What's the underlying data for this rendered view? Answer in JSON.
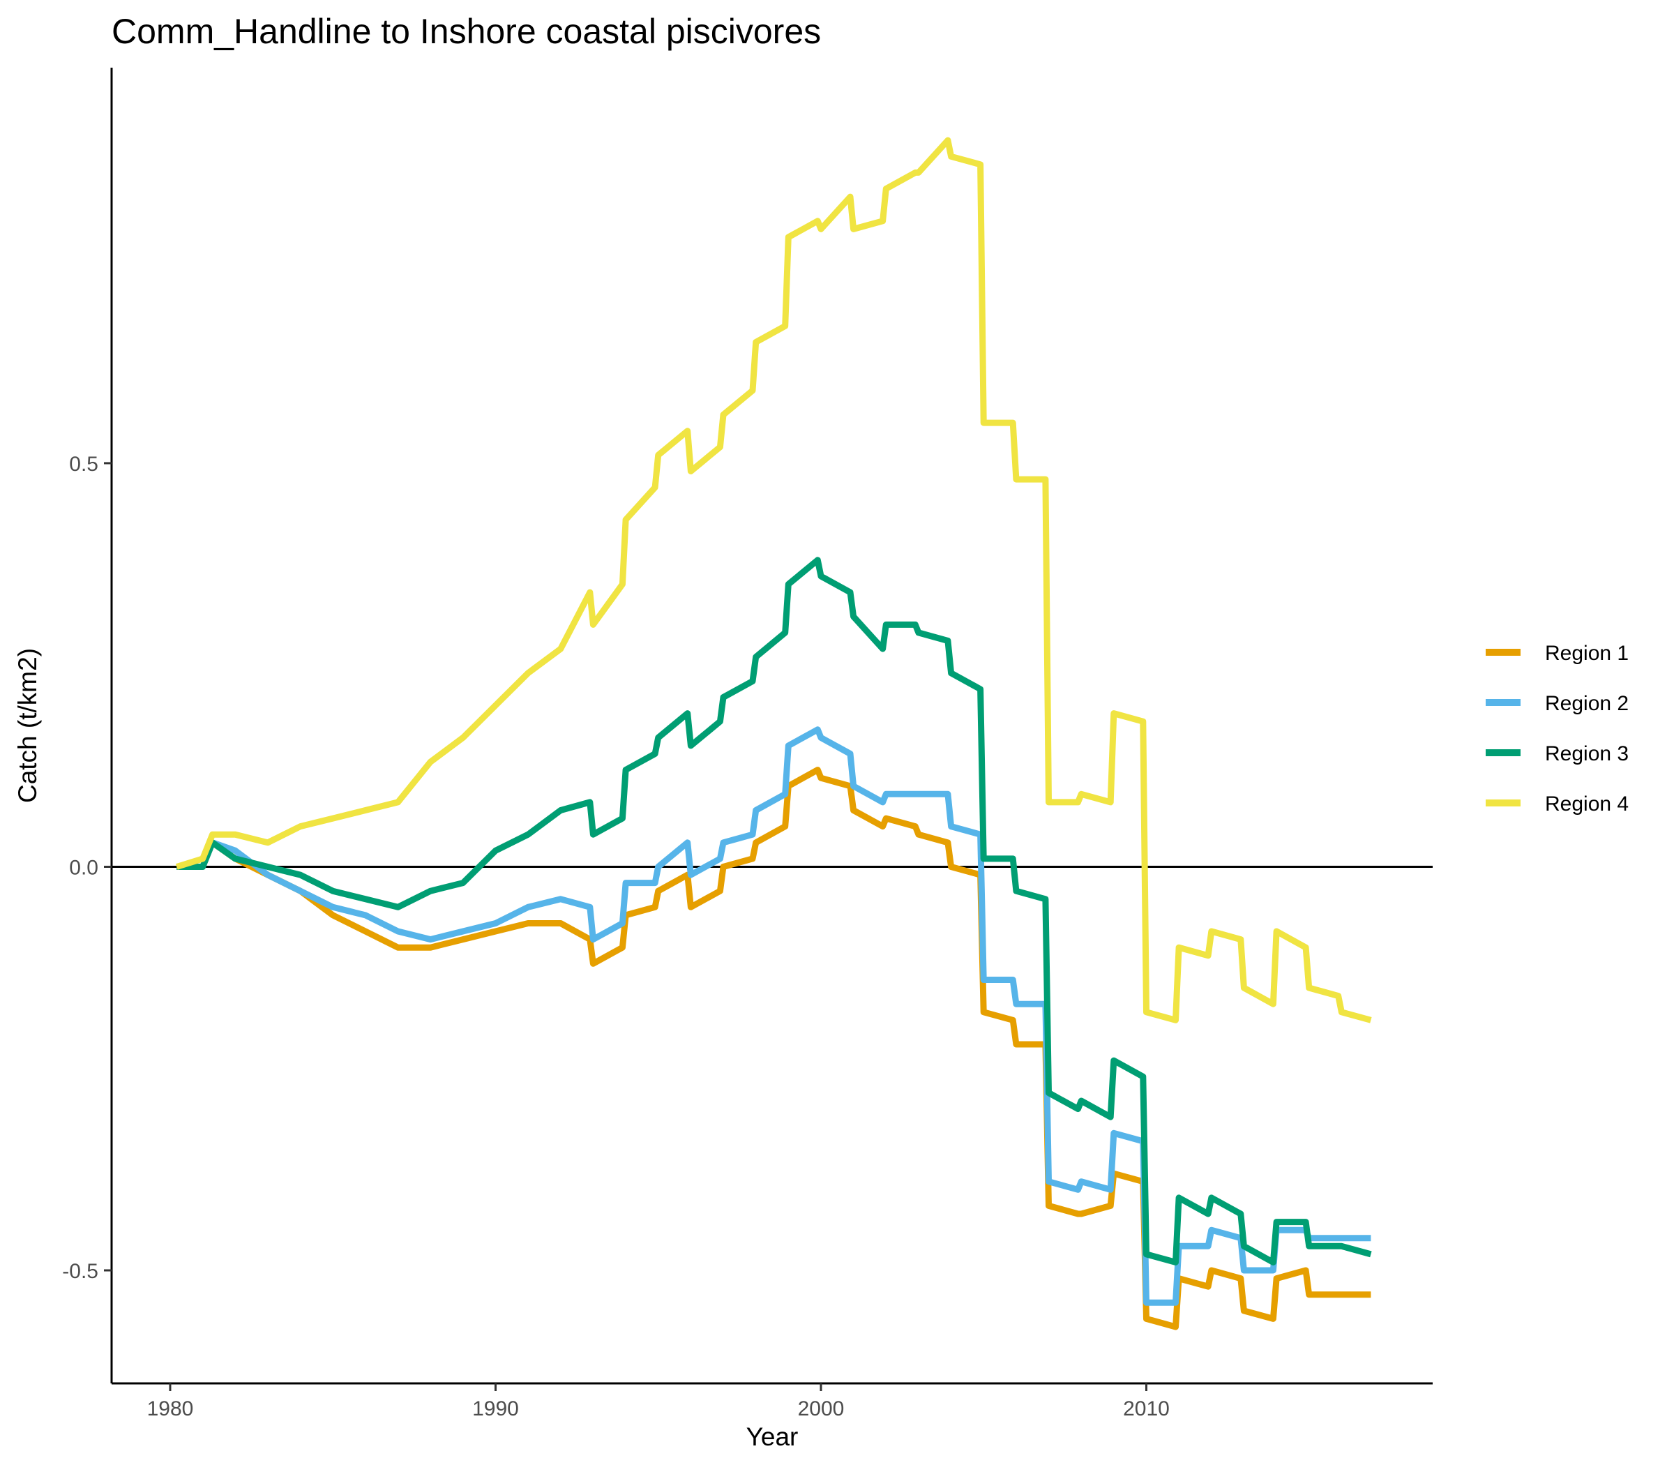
{
  "chart_data": {
    "type": "line",
    "title": "Comm_Handline to Inshore coastal piscivores",
    "xlabel": "Year",
    "ylabel": "Catch (t/km2)",
    "xlim": [
      1978.2,
      2018.8
    ],
    "ylim": [
      -0.64,
      0.99
    ],
    "x_ticks": [
      1980,
      1990,
      2000,
      2010
    ],
    "x_tick_labels": [
      "1980",
      "1990",
      "2000",
      "2010"
    ],
    "y_ticks": [
      -0.5,
      0.0,
      0.5
    ],
    "y_tick_labels": [
      "-0.5",
      "0.0",
      "0.5"
    ],
    "zero_line": true,
    "grid": false,
    "legend_position": "right",
    "series": [
      {
        "name": "Region 1",
        "color": "#E69F00",
        "x": [
          1980.2,
          1981.0,
          1981.3,
          1982.0,
          1983.0,
          1984.0,
          1985.0,
          1986.0,
          1987.0,
          1988.0,
          1989.0,
          1990.0,
          1991.0,
          1992.0,
          1992.9,
          1993.0,
          1993.9,
          1994.0,
          1994.9,
          1995.0,
          1995.9,
          1996.0,
          1996.9,
          1997.0,
          1997.9,
          1998.0,
          1998.9,
          1999.0,
          1999.9,
          2000.0,
          2000.9,
          2001.0,
          2001.9,
          2002.0,
          2002.9,
          2003.0,
          2003.9,
          2004.0,
          2004.9,
          2005.0,
          2005.9,
          2006.0,
          2006.9,
          2007.0,
          2007.9,
          2008.0,
          2008.9,
          2009.0,
          2009.9,
          2010.0,
          2010.9,
          2011.0,
          2011.9,
          2012.0,
          2012.9,
          2013.0,
          2013.9,
          2014.0,
          2014.9,
          2015.0,
          2015.9,
          2016.0,
          2016.9
        ],
        "y": [
          0.0,
          0.0,
          0.03,
          0.01,
          -0.01,
          -0.03,
          -0.06,
          -0.08,
          -0.1,
          -0.1,
          -0.09,
          -0.08,
          -0.07,
          -0.07,
          -0.09,
          -0.12,
          -0.1,
          -0.06,
          -0.05,
          -0.03,
          -0.01,
          -0.05,
          -0.03,
          0.0,
          0.01,
          0.03,
          0.05,
          0.1,
          0.12,
          0.11,
          0.1,
          0.07,
          0.05,
          0.06,
          0.05,
          0.04,
          0.03,
          0.0,
          -0.01,
          -0.18,
          -0.19,
          -0.22,
          -0.22,
          -0.42,
          -0.43,
          -0.43,
          -0.42,
          -0.38,
          -0.39,
          -0.56,
          -0.57,
          -0.51,
          -0.52,
          -0.5,
          -0.51,
          -0.55,
          -0.56,
          -0.51,
          -0.5,
          -0.53,
          -0.53,
          -0.53,
          -0.53
        ]
      },
      {
        "name": "Region 2",
        "color": "#56B4E9",
        "x": [
          1980.2,
          1981.0,
          1981.3,
          1982.0,
          1983.0,
          1984.0,
          1985.0,
          1986.0,
          1987.0,
          1988.0,
          1989.0,
          1990.0,
          1991.0,
          1992.0,
          1992.9,
          1993.0,
          1993.9,
          1994.0,
          1994.9,
          1995.0,
          1995.9,
          1996.0,
          1996.9,
          1997.0,
          1997.9,
          1998.0,
          1998.9,
          1999.0,
          1999.9,
          2000.0,
          2000.9,
          2001.0,
          2001.9,
          2002.0,
          2002.9,
          2003.0,
          2003.9,
          2004.0,
          2004.9,
          2005.0,
          2005.9,
          2006.0,
          2006.9,
          2007.0,
          2007.9,
          2008.0,
          2008.9,
          2009.0,
          2009.9,
          2010.0,
          2010.9,
          2011.0,
          2011.9,
          2012.0,
          2012.9,
          2013.0,
          2013.9,
          2014.0,
          2014.9,
          2015.0,
          2015.9,
          2016.0,
          2016.9
        ],
        "y": [
          0.0,
          0.0,
          0.03,
          0.02,
          -0.01,
          -0.03,
          -0.05,
          -0.06,
          -0.08,
          -0.09,
          -0.08,
          -0.07,
          -0.05,
          -0.04,
          -0.05,
          -0.09,
          -0.07,
          -0.02,
          -0.02,
          0.0,
          0.03,
          -0.01,
          0.01,
          0.03,
          0.04,
          0.07,
          0.09,
          0.15,
          0.17,
          0.16,
          0.14,
          0.1,
          0.08,
          0.09,
          0.09,
          0.09,
          0.09,
          0.05,
          0.04,
          -0.14,
          -0.14,
          -0.17,
          -0.17,
          -0.39,
          -0.4,
          -0.39,
          -0.4,
          -0.33,
          -0.34,
          -0.54,
          -0.54,
          -0.47,
          -0.47,
          -0.45,
          -0.46,
          -0.5,
          -0.5,
          -0.45,
          -0.45,
          -0.46,
          -0.46,
          -0.46,
          -0.46
        ]
      },
      {
        "name": "Region 3",
        "color": "#009E73",
        "x": [
          1980.2,
          1981.0,
          1981.3,
          1982.0,
          1983.0,
          1984.0,
          1985.0,
          1986.0,
          1987.0,
          1988.0,
          1989.0,
          1990.0,
          1991.0,
          1992.0,
          1992.9,
          1993.0,
          1993.9,
          1994.0,
          1994.9,
          1995.0,
          1995.9,
          1996.0,
          1996.9,
          1997.0,
          1997.9,
          1998.0,
          1998.9,
          1999.0,
          1999.9,
          2000.0,
          2000.9,
          2001.0,
          2001.9,
          2002.0,
          2002.9,
          2003.0,
          2003.9,
          2004.0,
          2004.9,
          2005.0,
          2005.9,
          2006.0,
          2006.9,
          2007.0,
          2007.9,
          2008.0,
          2008.9,
          2009.0,
          2009.9,
          2010.0,
          2010.9,
          2011.0,
          2011.9,
          2012.0,
          2012.9,
          2013.0,
          2013.9,
          2014.0,
          2014.9,
          2015.0,
          2015.9,
          2016.0,
          2016.9
        ],
        "y": [
          0.0,
          0.0,
          0.03,
          0.01,
          0.0,
          -0.01,
          -0.03,
          -0.04,
          -0.05,
          -0.03,
          -0.02,
          0.02,
          0.04,
          0.07,
          0.08,
          0.04,
          0.06,
          0.12,
          0.14,
          0.16,
          0.19,
          0.15,
          0.18,
          0.21,
          0.23,
          0.26,
          0.29,
          0.35,
          0.38,
          0.36,
          0.34,
          0.31,
          0.27,
          0.3,
          0.3,
          0.29,
          0.28,
          0.24,
          0.22,
          0.01,
          0.01,
          -0.03,
          -0.04,
          -0.28,
          -0.3,
          -0.29,
          -0.31,
          -0.24,
          -0.26,
          -0.48,
          -0.49,
          -0.41,
          -0.43,
          -0.41,
          -0.43,
          -0.47,
          -0.49,
          -0.44,
          -0.44,
          -0.47,
          -0.47,
          -0.47,
          -0.48
        ]
      },
      {
        "name": "Region 4",
        "color": "#F0E442",
        "x": [
          1980.2,
          1981.0,
          1981.3,
          1982.0,
          1983.0,
          1984.0,
          1985.0,
          1986.0,
          1987.0,
          1988.0,
          1989.0,
          1990.0,
          1991.0,
          1992.0,
          1992.9,
          1993.0,
          1993.9,
          1994.0,
          1994.9,
          1995.0,
          1995.9,
          1996.0,
          1996.9,
          1997.0,
          1997.9,
          1998.0,
          1998.9,
          1999.0,
          1999.9,
          2000.0,
          2000.9,
          2001.0,
          2001.9,
          2002.0,
          2002.9,
          2003.0,
          2003.9,
          2004.0,
          2004.9,
          2005.0,
          2005.9,
          2006.0,
          2006.9,
          2007.0,
          2007.9,
          2008.0,
          2008.9,
          2009.0,
          2009.9,
          2010.0,
          2010.9,
          2011.0,
          2011.9,
          2012.0,
          2012.9,
          2013.0,
          2013.9,
          2014.0,
          2014.9,
          2015.0,
          2015.9,
          2016.0,
          2016.9
        ],
        "y": [
          0.0,
          0.01,
          0.04,
          0.04,
          0.03,
          0.05,
          0.06,
          0.07,
          0.08,
          0.13,
          0.16,
          0.2,
          0.24,
          0.27,
          0.34,
          0.3,
          0.35,
          0.43,
          0.47,
          0.51,
          0.54,
          0.49,
          0.52,
          0.56,
          0.59,
          0.65,
          0.67,
          0.78,
          0.8,
          0.79,
          0.83,
          0.79,
          0.8,
          0.84,
          0.86,
          0.86,
          0.9,
          0.88,
          0.87,
          0.55,
          0.55,
          0.48,
          0.48,
          0.08,
          0.08,
          0.09,
          0.08,
          0.19,
          0.18,
          -0.18,
          -0.19,
          -0.1,
          -0.11,
          -0.08,
          -0.09,
          -0.15,
          -0.17,
          -0.08,
          -0.1,
          -0.15,
          -0.16,
          -0.18,
          -0.19
        ]
      }
    ]
  }
}
